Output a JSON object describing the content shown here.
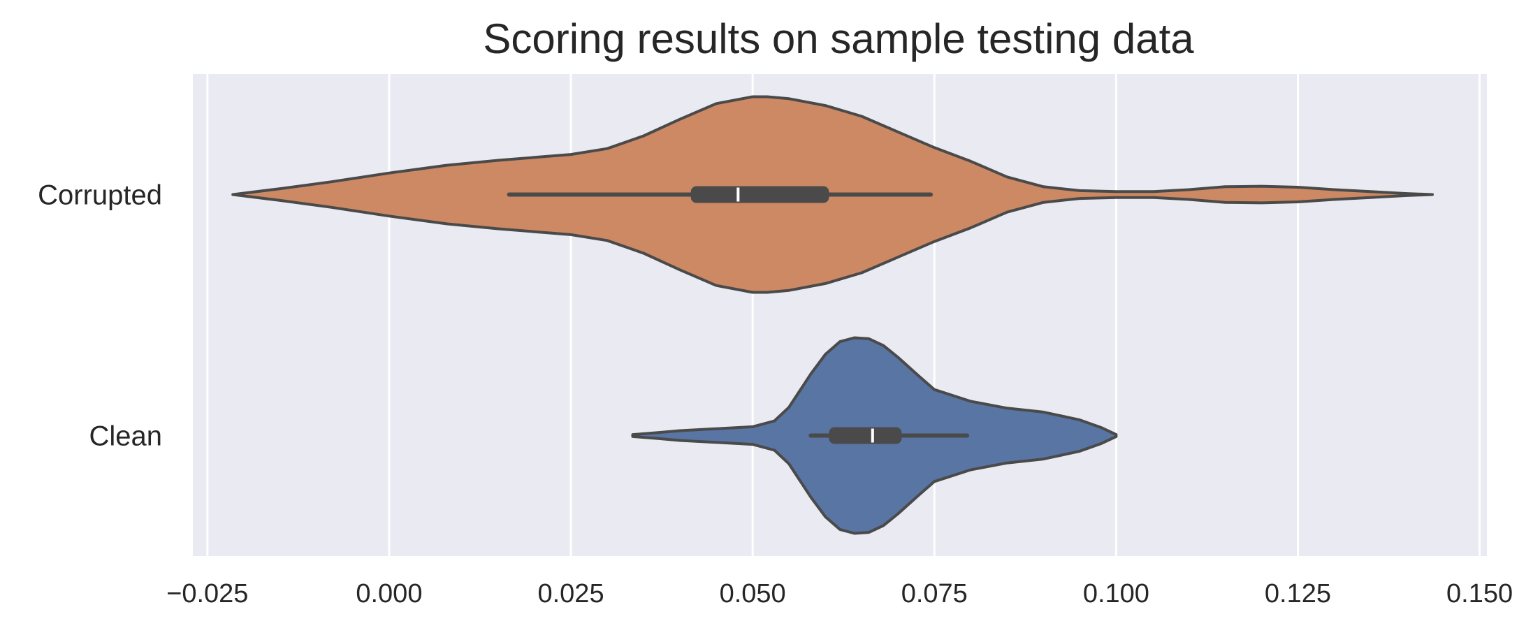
{
  "chart_data": {
    "type": "violin",
    "orientation": "horizontal",
    "title": "Scoring results on sample testing data",
    "xlabel": "",
    "ylabel": "",
    "xlim": [
      -0.027,
      0.151
    ],
    "xticks": [
      -0.025,
      0.0,
      0.025,
      0.05,
      0.075,
      0.1,
      0.125,
      0.15
    ],
    "xtick_labels": [
      "−0.025",
      "0.000",
      "0.025",
      "0.050",
      "0.075",
      "0.100",
      "0.125",
      "0.150"
    ],
    "grid": true,
    "background": "#eaeaf2",
    "outline_color": "#4a4a4a",
    "categories": [
      "Corrupted",
      "Clean"
    ],
    "series": [
      {
        "name": "Corrupted",
        "color": "#cc8963",
        "min": -0.0215,
        "max": 0.1435,
        "whisker_low": 0.0165,
        "whisker_high": 0.0745,
        "q1": 0.0415,
        "q3": 0.0605,
        "median": 0.048,
        "density_x": [
          -0.0215,
          -0.015,
          -0.008,
          0.0,
          0.008,
          0.015,
          0.02,
          0.025,
          0.03,
          0.035,
          0.04,
          0.045,
          0.05,
          0.052,
          0.055,
          0.06,
          0.065,
          0.07,
          0.075,
          0.08,
          0.085,
          0.09,
          0.095,
          0.1,
          0.105,
          0.11,
          0.115,
          0.12,
          0.125,
          0.13,
          0.135,
          0.14,
          0.1435
        ],
        "density_y": [
          0.0,
          0.06,
          0.13,
          0.22,
          0.3,
          0.35,
          0.38,
          0.41,
          0.47,
          0.6,
          0.77,
          0.93,
          1.0,
          1.0,
          0.98,
          0.91,
          0.8,
          0.64,
          0.48,
          0.34,
          0.18,
          0.08,
          0.04,
          0.03,
          0.03,
          0.05,
          0.08,
          0.085,
          0.075,
          0.05,
          0.03,
          0.01,
          0.0
        ]
      },
      {
        "name": "Clean",
        "color": "#5875a4",
        "min": 0.0335,
        "max": 0.1,
        "whisker_low": 0.058,
        "whisker_high": 0.0795,
        "q1": 0.0605,
        "q3": 0.0705,
        "median": 0.0665,
        "density_x": [
          0.0335,
          0.037,
          0.04,
          0.045,
          0.05,
          0.053,
          0.055,
          0.058,
          0.06,
          0.062,
          0.064,
          0.066,
          0.068,
          0.07,
          0.073,
          0.075,
          0.08,
          0.085,
          0.09,
          0.095,
          0.098,
          0.1
        ],
        "density_y": [
          0.01,
          0.03,
          0.05,
          0.07,
          0.09,
          0.15,
          0.29,
          0.63,
          0.83,
          0.96,
          1.0,
          0.99,
          0.92,
          0.8,
          0.6,
          0.47,
          0.35,
          0.28,
          0.24,
          0.16,
          0.08,
          0.01
        ]
      }
    ]
  }
}
